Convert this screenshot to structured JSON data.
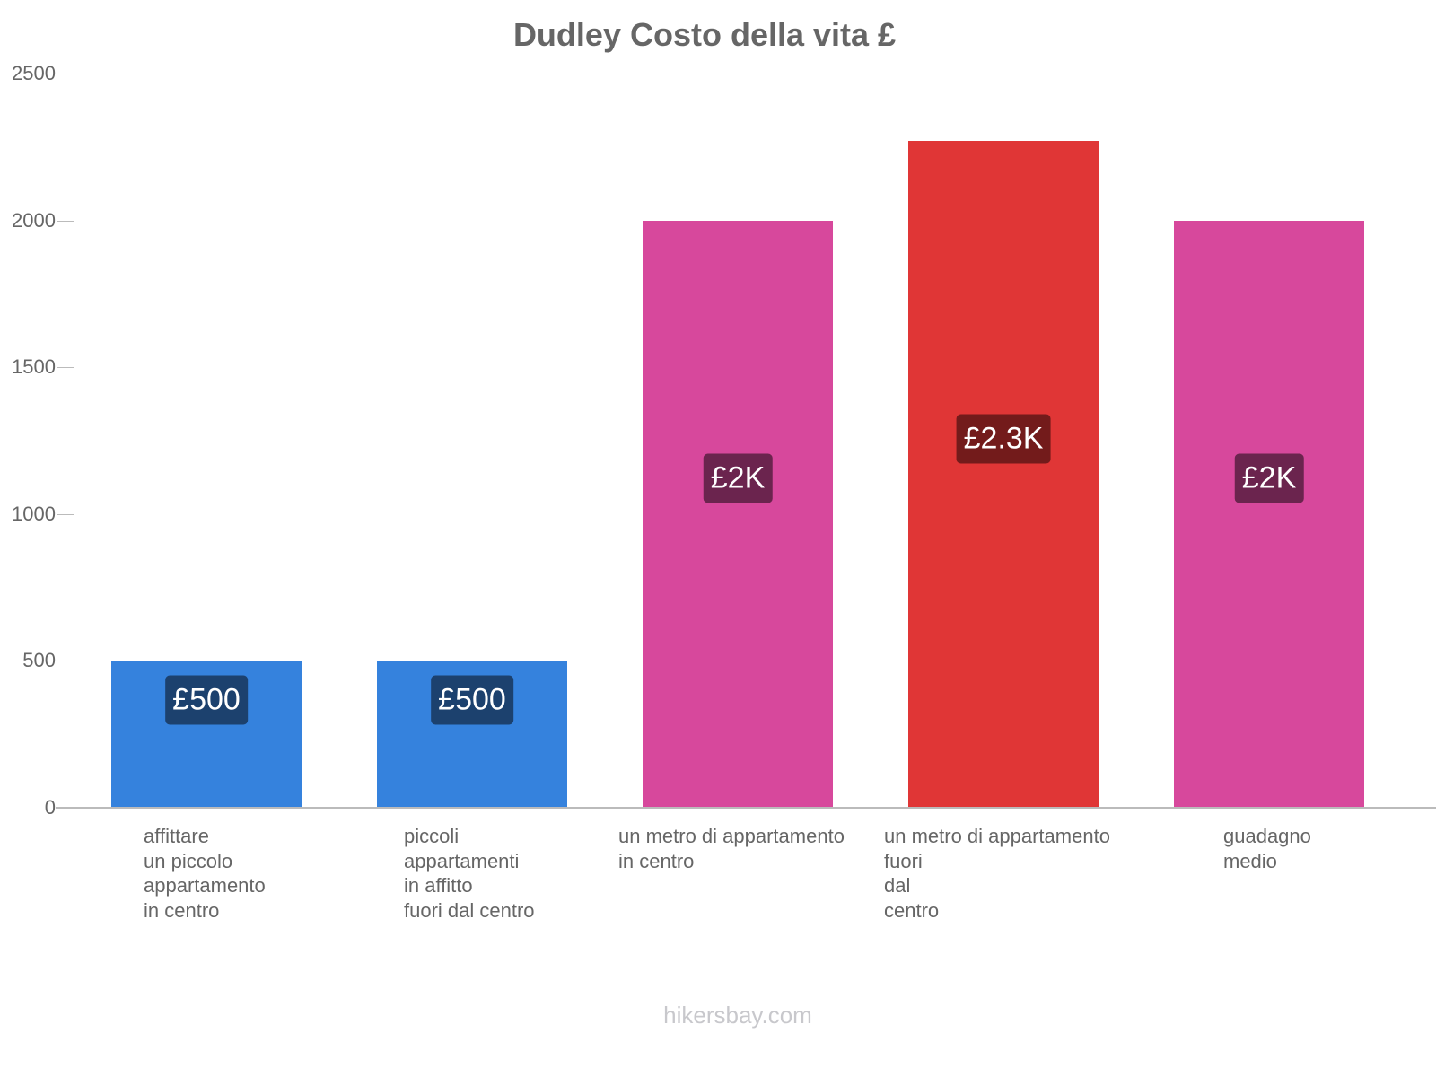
{
  "title": "Dudley Costo della vita £",
  "footer": "hikersbay.com",
  "y_ticks": [
    "0",
    "500",
    "1000",
    "1500",
    "2000",
    "2500"
  ],
  "bars": [
    {
      "label_lines": "affittare\nun piccolo\nappartamento\nin centro",
      "value_label": "£500",
      "value": 500,
      "color": "#3582dd",
      "label_bg": "#1c416e"
    },
    {
      "label_lines": "piccoli\nappartamenti\nin affitto\nfuori dal centro",
      "value_label": "£500",
      "value": 500,
      "color": "#3582dd",
      "label_bg": "#1c416e"
    },
    {
      "label_lines": "un metro di appartamento\nin centro",
      "value_label": "£2K",
      "value": 2000,
      "color": "#d7489c",
      "label_bg": "#6b244e"
    },
    {
      "label_lines": "un metro di appartamento\nfuori\ndal\ncentro",
      "value_label": "£2.3K",
      "value": 2270,
      "color": "#e03636",
      "label_bg": "#731b1b"
    },
    {
      "label_lines": "guadagno\nmedio",
      "value_label": "£2K",
      "value": 2000,
      "color": "#d7489c",
      "label_bg": "#6b244e"
    }
  ],
  "chart_data": {
    "type": "bar",
    "title": "Dudley Costo della vita £",
    "categories": [
      "affittare un piccolo appartamento in centro",
      "piccoli appartamenti in affitto fuori dal centro",
      "un metro di appartamento in centro",
      "un metro di appartamento fuori dal centro",
      "guadagno medio"
    ],
    "values": [
      500,
      500,
      2000,
      2270,
      2000
    ],
    "value_labels": [
      "£500",
      "£500",
      "£2K",
      "£2.3K",
      "£2K"
    ],
    "colors": [
      "#3582dd",
      "#3582dd",
      "#d7489c",
      "#e03636",
      "#d7489c"
    ],
    "xlabel": "",
    "ylabel": "",
    "ylim": [
      0,
      2500
    ],
    "y_ticks": [
      0,
      500,
      1000,
      1500,
      2000,
      2500
    ],
    "grid": false,
    "legend": "none"
  }
}
